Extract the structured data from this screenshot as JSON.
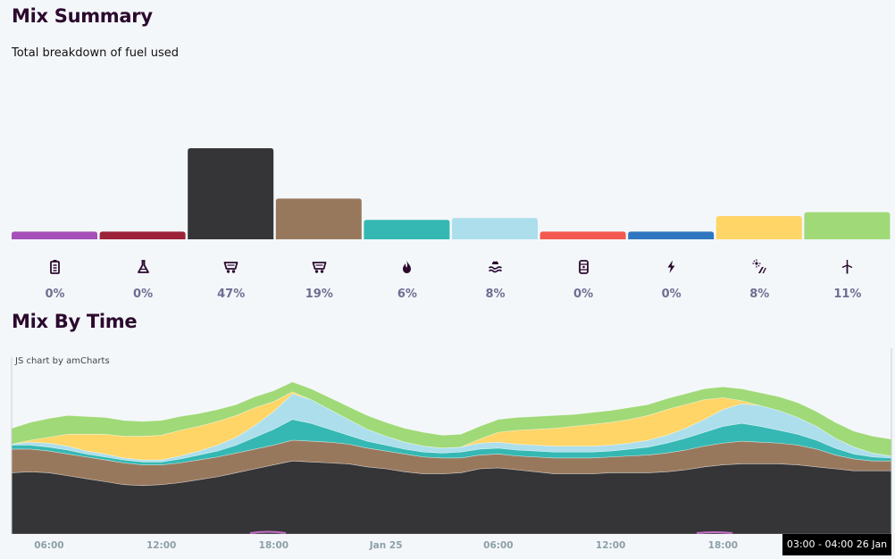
{
  "summary": {
    "title": "Mix Summary",
    "subtitle": "Total breakdown of fuel used",
    "fuels": [
      {
        "icon": "battery-icon",
        "label": "0%",
        "color": "#a550b8"
      },
      {
        "icon": "flask-icon",
        "label": "0%",
        "color": "#9c2339"
      },
      {
        "icon": "coal-cart-icon",
        "label": "47%",
        "color": "#353537"
      },
      {
        "icon": "coal-cart-icon",
        "label": "19%",
        "color": "#98785d"
      },
      {
        "icon": "flame-icon",
        "label": "6%",
        "color": "#35b8b3"
      },
      {
        "icon": "water-icon",
        "label": "8%",
        "color": "#acdeec"
      },
      {
        "icon": "oil-barrel-icon",
        "label": "0%",
        "color": "#f35a4f"
      },
      {
        "icon": "bolt-icon",
        "label": "0%",
        "color": "#2f76c0"
      },
      {
        "icon": "solar-icon",
        "label": "8%",
        "color": "#fed566"
      },
      {
        "icon": "wind-turbine-icon",
        "label": "11%",
        "color": "#a0d977"
      }
    ]
  },
  "chart_data": [
    {
      "type": "bar",
      "categories": [
        "0%",
        "0%",
        "47%",
        "19%",
        "6%",
        "8%",
        "0%",
        "0%",
        "8%",
        "11%"
      ],
      "values": [
        4,
        4,
        47,
        21,
        10,
        11,
        4,
        4,
        12,
        14
      ]
    },
    {
      "type": "area",
      "stacked": true,
      "x": [
        "04:00",
        "05:00",
        "06:00",
        "07:00",
        "08:00",
        "09:00",
        "10:00",
        "11:00",
        "12:00",
        "13:00",
        "14:00",
        "15:00",
        "16:00",
        "17:00",
        "18:00",
        "19:00",
        "20:00",
        "21:00",
        "22:00",
        "23:00",
        "Jan 25",
        "01:00",
        "02:00",
        "03:00",
        "04:00",
        "05:00",
        "06:00",
        "07:00",
        "08:00",
        "09:00",
        "10:00",
        "11:00",
        "12:00",
        "13:00",
        "14:00",
        "15:00",
        "16:00",
        "17:00",
        "18:00",
        "19:00",
        "20:00",
        "21:00",
        "22:00",
        "23:00",
        "Jan 26",
        "01:00",
        "02:00",
        "03:00"
      ],
      "xticks": [
        "06:00",
        "12:00",
        "18:00",
        "Jan 25",
        "06:00",
        "12:00",
        "18:00"
      ],
      "series": [
        {
          "color": "#353537",
          "values": [
            62,
            63,
            62,
            59,
            56,
            53,
            50,
            49,
            50,
            52,
            55,
            58,
            62,
            66,
            70,
            74,
            73,
            72,
            71,
            68,
            66,
            63,
            61,
            61,
            62,
            66,
            67,
            65,
            63,
            61,
            61,
            61,
            62,
            62,
            62,
            63,
            65,
            68,
            70,
            71,
            71,
            71,
            70,
            68,
            66,
            64,
            64,
            64
          ]
        },
        {
          "color": "#98785d",
          "values": [
            24,
            23,
            22,
            22,
            22,
            22,
            22,
            21,
            20,
            20,
            20,
            20,
            20,
            20,
            20,
            21,
            21,
            21,
            20,
            19,
            18,
            18,
            17,
            16,
            15,
            14,
            14,
            14,
            15,
            16,
            16,
            16,
            16,
            17,
            18,
            19,
            20,
            21,
            22,
            23,
            22,
            21,
            20,
            18,
            14,
            12,
            10,
            10
          ]
        },
        {
          "color": "#35b8b3",
          "values": [
            4,
            4,
            4,
            4,
            3,
            3,
            3,
            3,
            3,
            4,
            5,
            6,
            8,
            12,
            16,
            21,
            18,
            13,
            9,
            7,
            6,
            5,
            5,
            5,
            6,
            6,
            6,
            6,
            6,
            6,
            6,
            6,
            6,
            7,
            8,
            10,
            12,
            14,
            17,
            18,
            16,
            13,
            11,
            9,
            7,
            5,
            4,
            3
          ]
        },
        {
          "color": "#acdeec",
          "values": [
            1,
            3,
            4,
            4,
            3,
            3,
            2,
            2,
            2,
            3,
            4,
            6,
            8,
            12,
            18,
            26,
            24,
            20,
            16,
            12,
            9,
            7,
            6,
            5,
            5,
            6,
            6,
            6,
            6,
            6,
            6,
            6,
            6,
            6,
            7,
            8,
            10,
            13,
            17,
            20,
            21,
            20,
            17,
            14,
            10,
            7,
            4,
            2
          ]
        },
        {
          "color": "#fed566",
          "values": [
            0,
            2,
            6,
            12,
            17,
            20,
            22,
            24,
            25,
            26,
            25,
            24,
            22,
            18,
            10,
            2,
            0,
            0,
            0,
            0,
            0,
            0,
            0,
            0,
            0,
            4,
            10,
            14,
            16,
            18,
            20,
            22,
            23,
            24,
            25,
            26,
            24,
            20,
            12,
            3,
            0,
            0,
            0,
            0,
            0,
            0,
            0,
            0
          ]
        },
        {
          "color": "#a0d977",
          "values": [
            16,
            18,
            19,
            19,
            18,
            17,
            16,
            15,
            15,
            14,
            13,
            12,
            11,
            11,
            11,
            10,
            11,
            12,
            13,
            14,
            14,
            14,
            14,
            13,
            13,
            13,
            13,
            13,
            13,
            13,
            12,
            12,
            12,
            12,
            11,
            11,
            11,
            11,
            11,
            12,
            13,
            14,
            15,
            15,
            16,
            16,
            17,
            17
          ]
        }
      ],
      "ylim": [
        0,
        170
      ]
    }
  ],
  "time": {
    "title": "Mix By Time",
    "credit": "JS chart by amCharts",
    "tooltip": "03:00 - 04:00 26 Jan"
  }
}
